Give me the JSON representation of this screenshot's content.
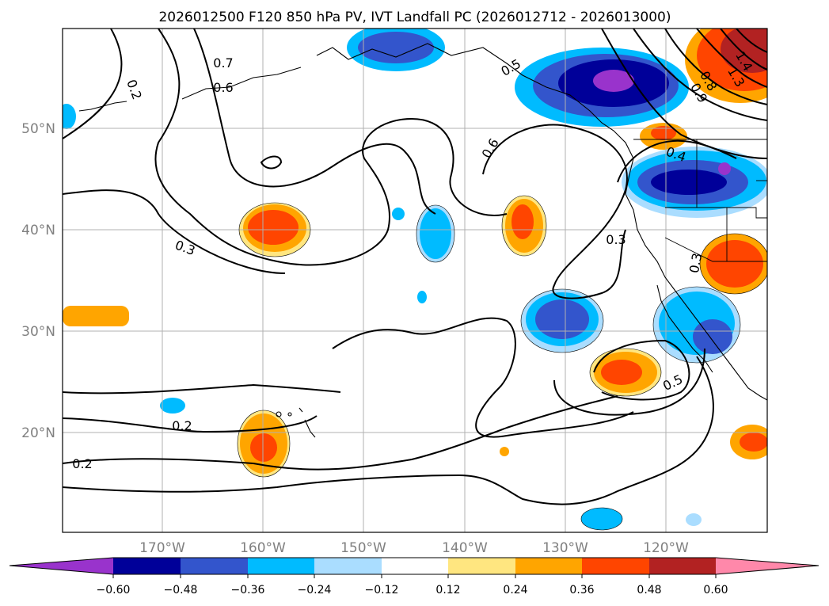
{
  "title": "2026012500 F120 850 hPa PV, IVT Landfall PC (2026012712 - 2026013000)",
  "map": {
    "lat_labels": [
      "50°N",
      "40°N",
      "30°N",
      "20°N"
    ],
    "lon_labels": [
      "170°W",
      "160°W",
      "150°W",
      "140°W",
      "130°W",
      "120°W"
    ],
    "contour_labels": [
      "0.2",
      "0.7",
      "0.6",
      "0.3",
      "0.2",
      "0.2",
      "0.5",
      "0.6",
      "0.4",
      "0.3",
      "0.3",
      "0.5",
      "1.3",
      "0.8",
      "0.9",
      "1.4"
    ]
  },
  "colorbar": {
    "ticks": [
      "−0.60",
      "−0.48",
      "−0.36",
      "−0.24",
      "−0.12",
      "0.12",
      "0.24",
      "0.36",
      "0.48",
      "0.60"
    ],
    "colors": [
      "#9933cc",
      "#000099",
      "#3355cc",
      "#00bbff",
      "#aaddff",
      "#ffffff",
      "#ffe680",
      "#ffa500",
      "#ff4500",
      "#b22222",
      "#ff88aa"
    ]
  }
}
